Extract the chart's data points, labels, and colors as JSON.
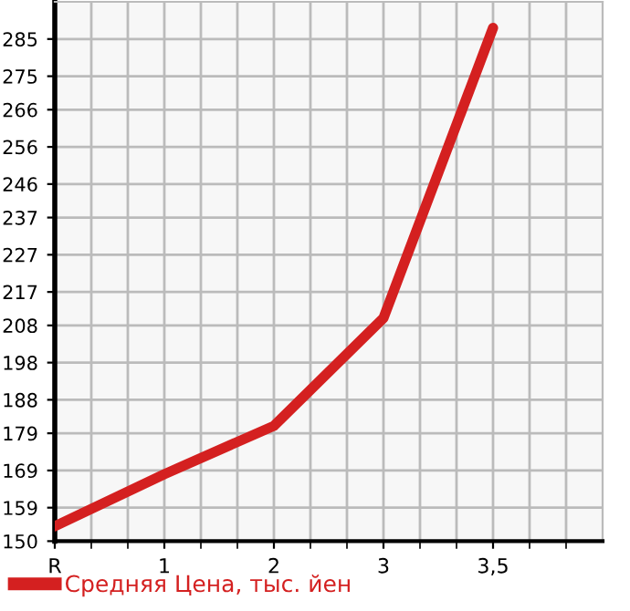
{
  "chart_data": {
    "type": "line",
    "categories": [
      "R",
      "1",
      "2",
      "3",
      "3,5"
    ],
    "series": [
      {
        "name": "Средняя Цена, тыс. йен",
        "color": "#d42020",
        "values": [
          154,
          168,
          181,
          210,
          288
        ]
      }
    ],
    "ylim": [
      150,
      295
    ],
    "yticks": [
      150,
      159,
      169,
      179,
      188,
      198,
      208,
      217,
      227,
      237,
      246,
      256,
      266,
      275,
      285
    ],
    "grid": true,
    "legend": "bottom left",
    "marker": "none",
    "line_style": "solid"
  }
}
